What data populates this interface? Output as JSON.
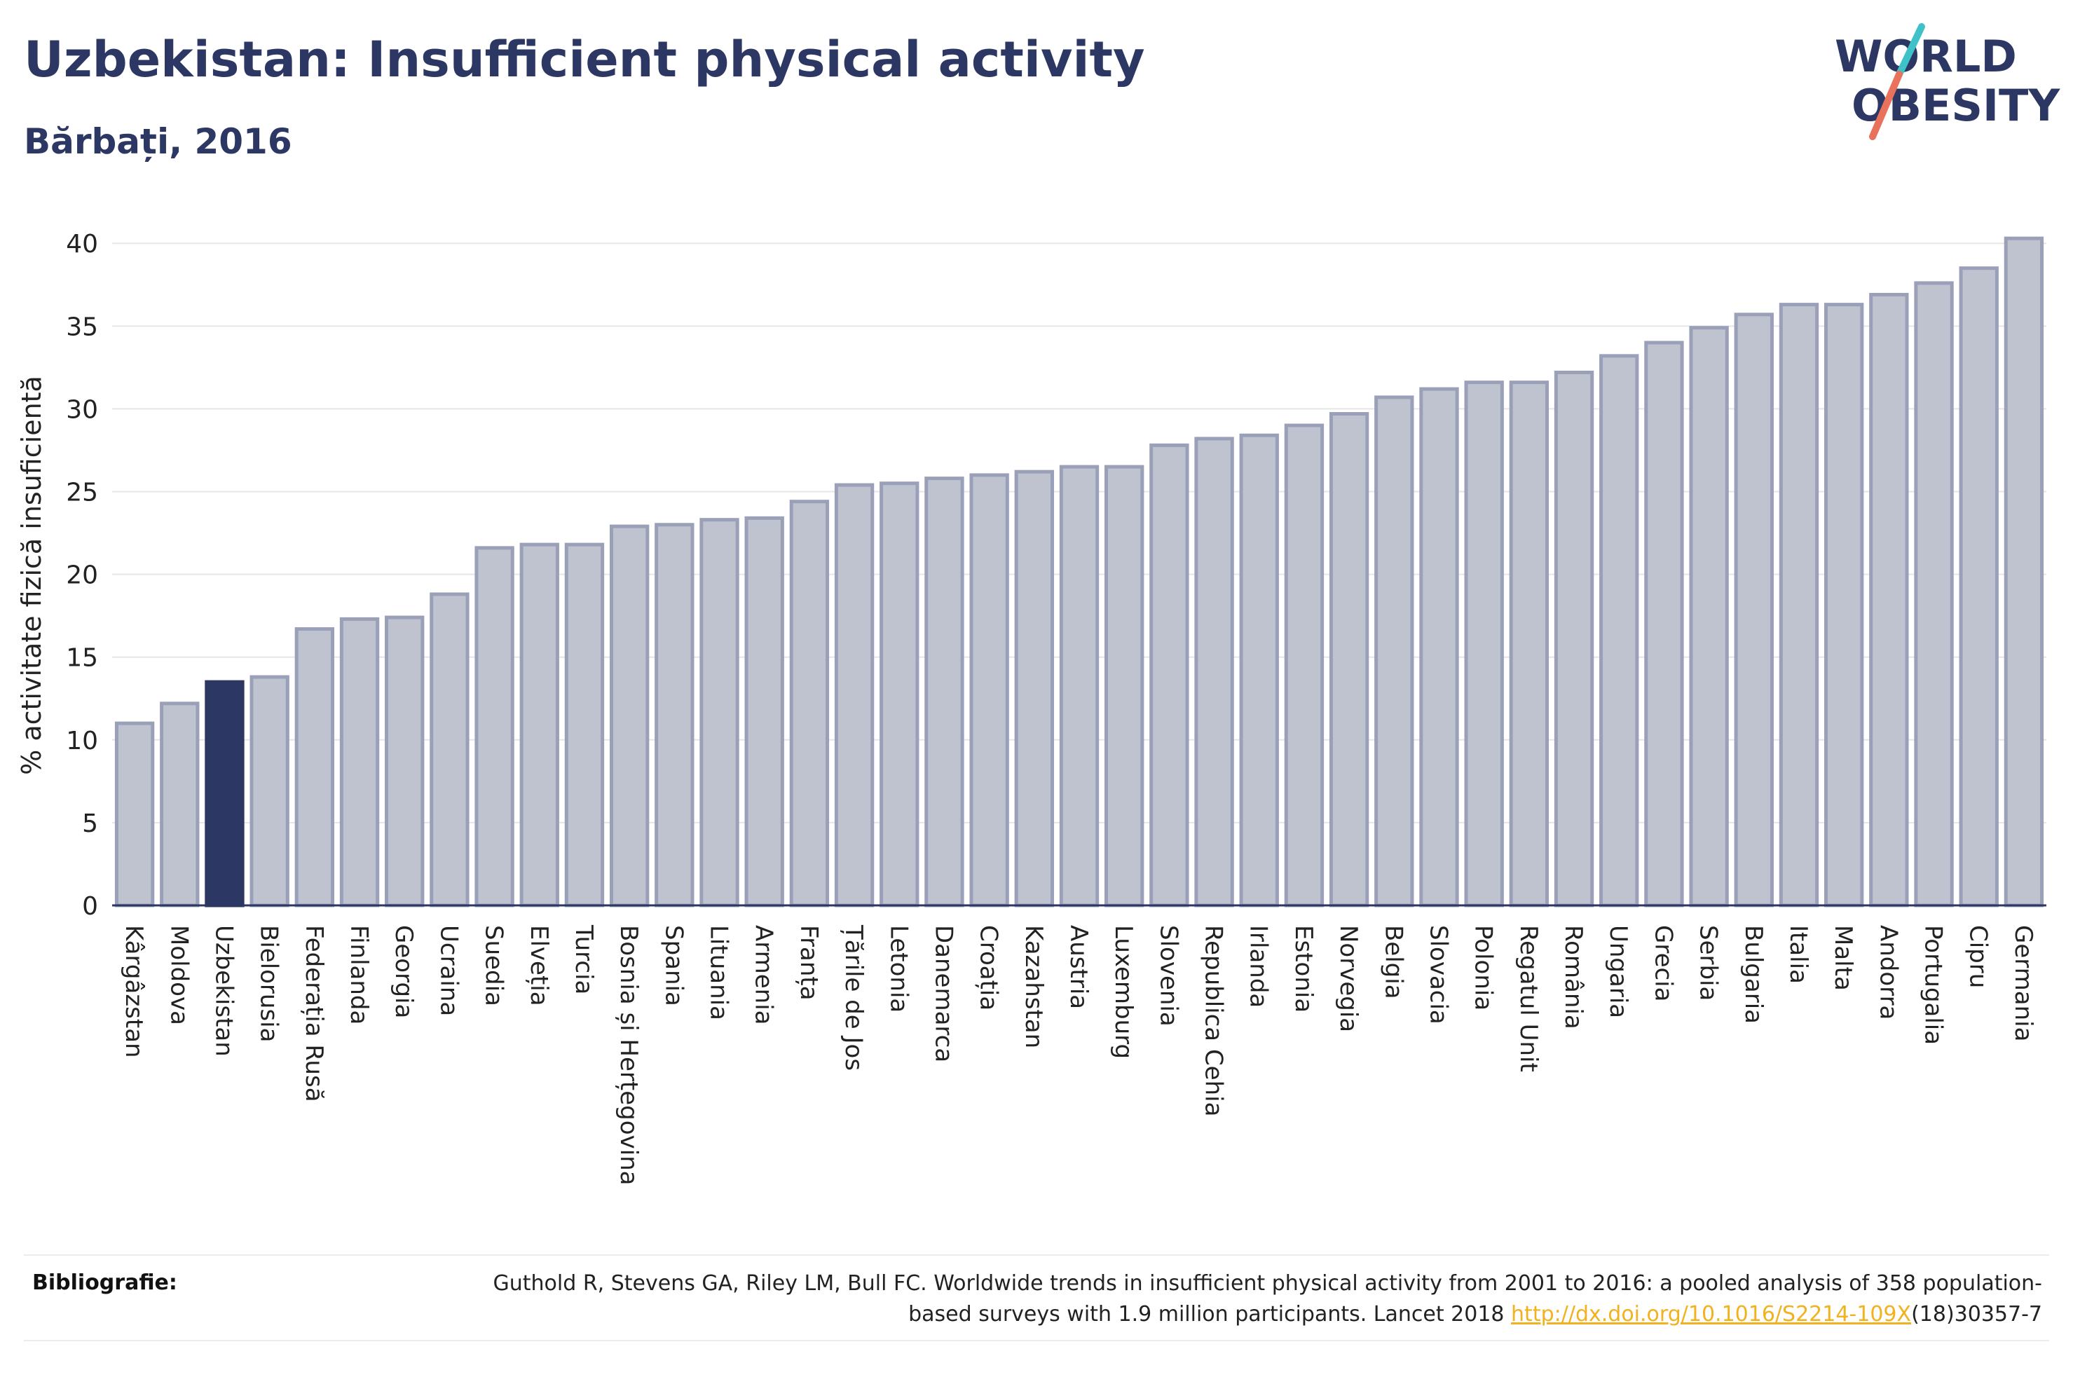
{
  "header": {
    "title": "Uzbekistan: Insufficient physical activity",
    "subtitle": "Bărbați, 2016"
  },
  "logo": {
    "line1": "WORLD",
    "line2": "OBESITY",
    "slash_colors": [
      "#3fc1c9",
      "#e8725c"
    ]
  },
  "colors": {
    "bar_default": "#bfc3d0",
    "bar_default_stroke": "#9aa0b8",
    "bar_highlight": "#2c3863",
    "text": "#2c3863",
    "link": "#f2b21f"
  },
  "chart_data": {
    "type": "bar",
    "title": "Uzbekistan: Insufficient physical activity",
    "subtitle": "Bărbați, 2016",
    "xlabel": "",
    "ylabel": "% activitate fizică insuficientă",
    "ylim": [
      0,
      42
    ],
    "yticks": [
      0,
      5,
      10,
      15,
      20,
      25,
      30,
      35,
      40
    ],
    "grid": true,
    "highlight": "Uzbekistan",
    "categories": [
      "Kârgâzstan",
      "Moldova",
      "Uzbekistan",
      "Bielorusia",
      "Federația Rusă",
      "Finlanda",
      "Georgia",
      "Ucraina",
      "Suedia",
      "Elveția",
      "Turcia",
      "Bosnia și Herțegovina",
      "Spania",
      "Lituania",
      "Armenia",
      "Franța",
      "Țările de Jos",
      "Letonia",
      "Danemarca",
      "Croația",
      "Kazahstan",
      "Austria",
      "Luxemburg",
      "Slovenia",
      "Republica Cehia",
      "Irlanda",
      "Estonia",
      "Norvegia",
      "Belgia",
      "Slovacia",
      "Polonia",
      "Regatul Unit",
      "România",
      "Ungaria",
      "Grecia",
      "Serbia",
      "Bulgaria",
      "Italia",
      "Malta",
      "Andorra",
      "Portugalia",
      "Cipru",
      "Germania"
    ],
    "values": [
      11.0,
      12.2,
      13.5,
      13.8,
      16.7,
      17.3,
      17.4,
      18.8,
      21.6,
      21.8,
      21.8,
      22.9,
      23.0,
      23.3,
      23.4,
      24.4,
      25.4,
      25.5,
      25.8,
      26.0,
      26.2,
      26.5,
      26.5,
      27.8,
      28.2,
      28.4,
      29.0,
      29.7,
      30.7,
      31.2,
      31.6,
      31.6,
      32.2,
      33.2,
      34.0,
      34.9,
      35.7,
      36.3,
      36.3,
      36.9,
      37.6,
      38.5,
      40.3
    ]
  },
  "footer": {
    "label": "Bibliografie:",
    "citation_before": "Guthold R, Stevens GA, Riley LM, Bull FC. Worldwide trends in insufficient physical activity from 2001 to 2016: a pooled analysis of 358 population-based surveys with 1.9 million participants. Lancet 2018 ",
    "link_text": "http://dx.doi.org/10.1016/S2214-109X",
    "citation_after": "(18)30357-7"
  }
}
